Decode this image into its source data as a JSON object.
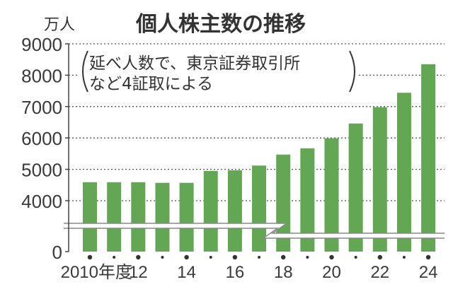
{
  "chart_data": {
    "type": "bar",
    "title": "個人株主数の推移",
    "unit_label": "万人",
    "note_lines": [
      "延べ人数で、東京証券取引所",
      "など4証取による"
    ],
    "categories": [
      "2010",
      "2011",
      "2012",
      "2013",
      "2014",
      "2015",
      "2016",
      "2017",
      "2018",
      "2019",
      "2020",
      "2021",
      "2022",
      "2023",
      "2024"
    ],
    "values": [
      4590,
      4590,
      4590,
      4570,
      4570,
      4950,
      4970,
      5120,
      5470,
      5670,
      5990,
      6460,
      6980,
      7440,
      8350
    ],
    "x_tick_labels": [
      {
        "index": 0,
        "label": "2010年度"
      },
      {
        "index": 2,
        "label": "12"
      },
      {
        "index": 4,
        "label": "14"
      },
      {
        "index": 6,
        "label": "16"
      },
      {
        "index": 8,
        "label": "18"
      },
      {
        "index": 10,
        "label": "20"
      },
      {
        "index": 12,
        "label": "22"
      },
      {
        "index": 14,
        "label": "24"
      }
    ],
    "y_ticks": [
      "9000",
      "8000",
      "7000",
      "6000",
      "5000",
      "4000",
      "0"
    ],
    "y_tick_values": [
      9000,
      8000,
      7000,
      6000,
      5000,
      4000,
      0
    ],
    "ylim_upper": [
      4000,
      9000
    ],
    "axis_break": true,
    "grid": "dotted horizontal",
    "bar_color": "#63a653",
    "xlabel": "",
    "ylabel": "万人"
  }
}
